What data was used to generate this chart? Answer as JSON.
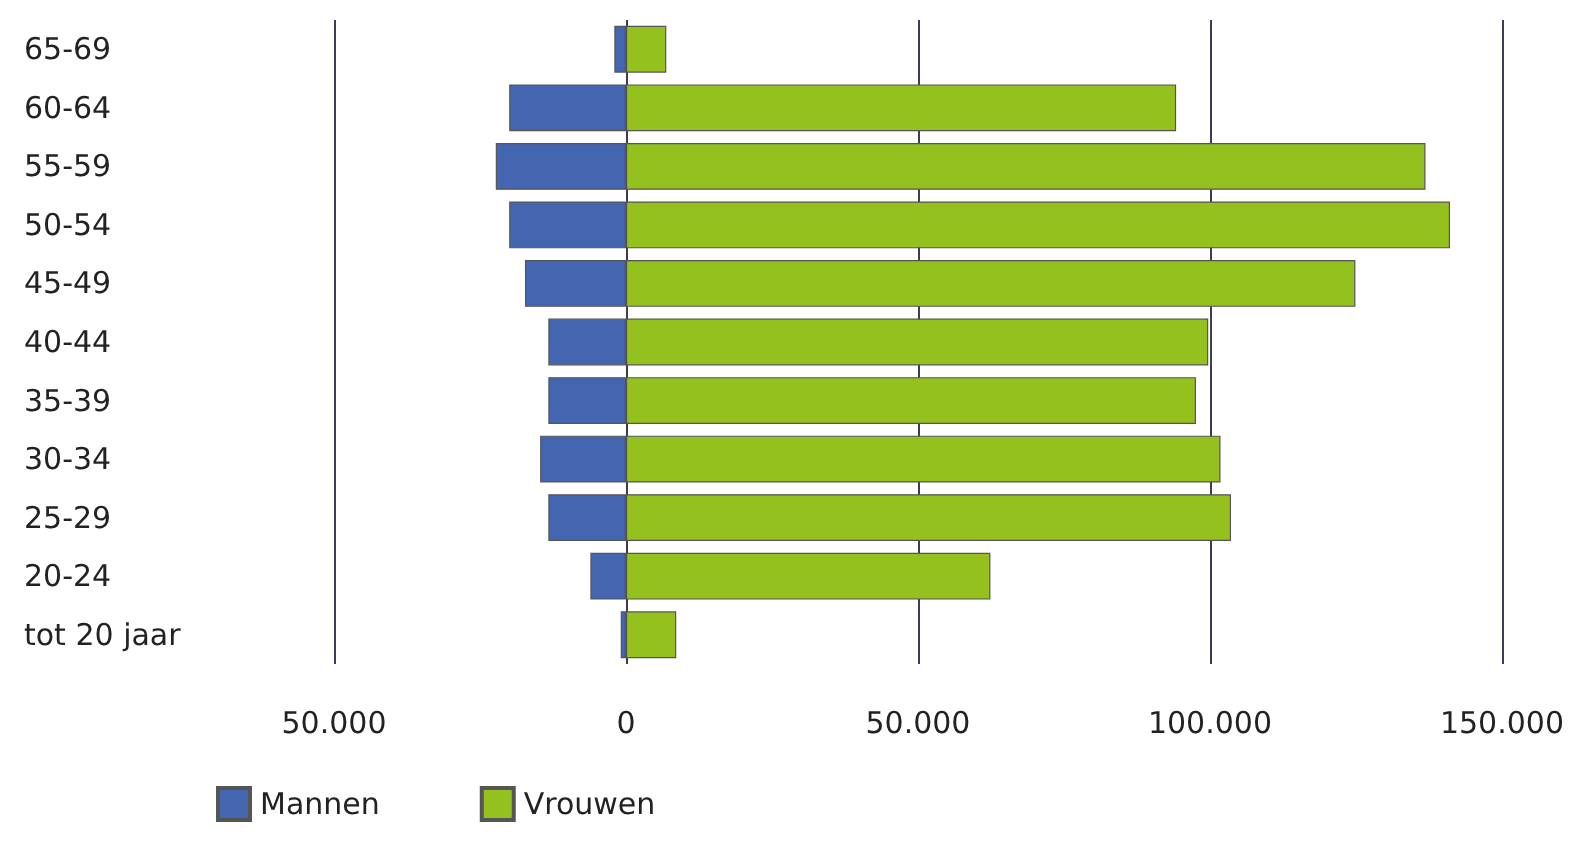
{
  "chart_data": {
    "type": "bar",
    "orientation": "horizontal",
    "stacked": true,
    "categories": [
      "65-69",
      "60-64",
      "55-59",
      "50-54",
      "45-49",
      "40-44",
      "35-39",
      "30-34",
      "25-29",
      "20-24",
      "tot 20 jaar"
    ],
    "series": [
      {
        "name": "Mannen",
        "color": "#4466b0",
        "values": [
          -2000,
          -20000,
          -22300,
          -20000,
          -17300,
          -13300,
          -13300,
          -14700,
          -13300,
          -6100,
          -900
        ]
      },
      {
        "name": "Vrouwen",
        "color": "#95c11f",
        "values": [
          6900,
          94200,
          136900,
          141100,
          124900,
          99700,
          97600,
          101800,
          103600,
          62400,
          8600
        ]
      }
    ],
    "xlim": [
      -50000,
      150000
    ],
    "xticks": [
      {
        "value": -50000,
        "label": "50.000"
      },
      {
        "value": 0,
        "label": "0"
      },
      {
        "value": 50000,
        "label": "50.000"
      },
      {
        "value": 100000,
        "label": "100.000"
      },
      {
        "value": 150000,
        "label": "150.000"
      }
    ],
    "grid": "x",
    "legend": "bottom left"
  }
}
